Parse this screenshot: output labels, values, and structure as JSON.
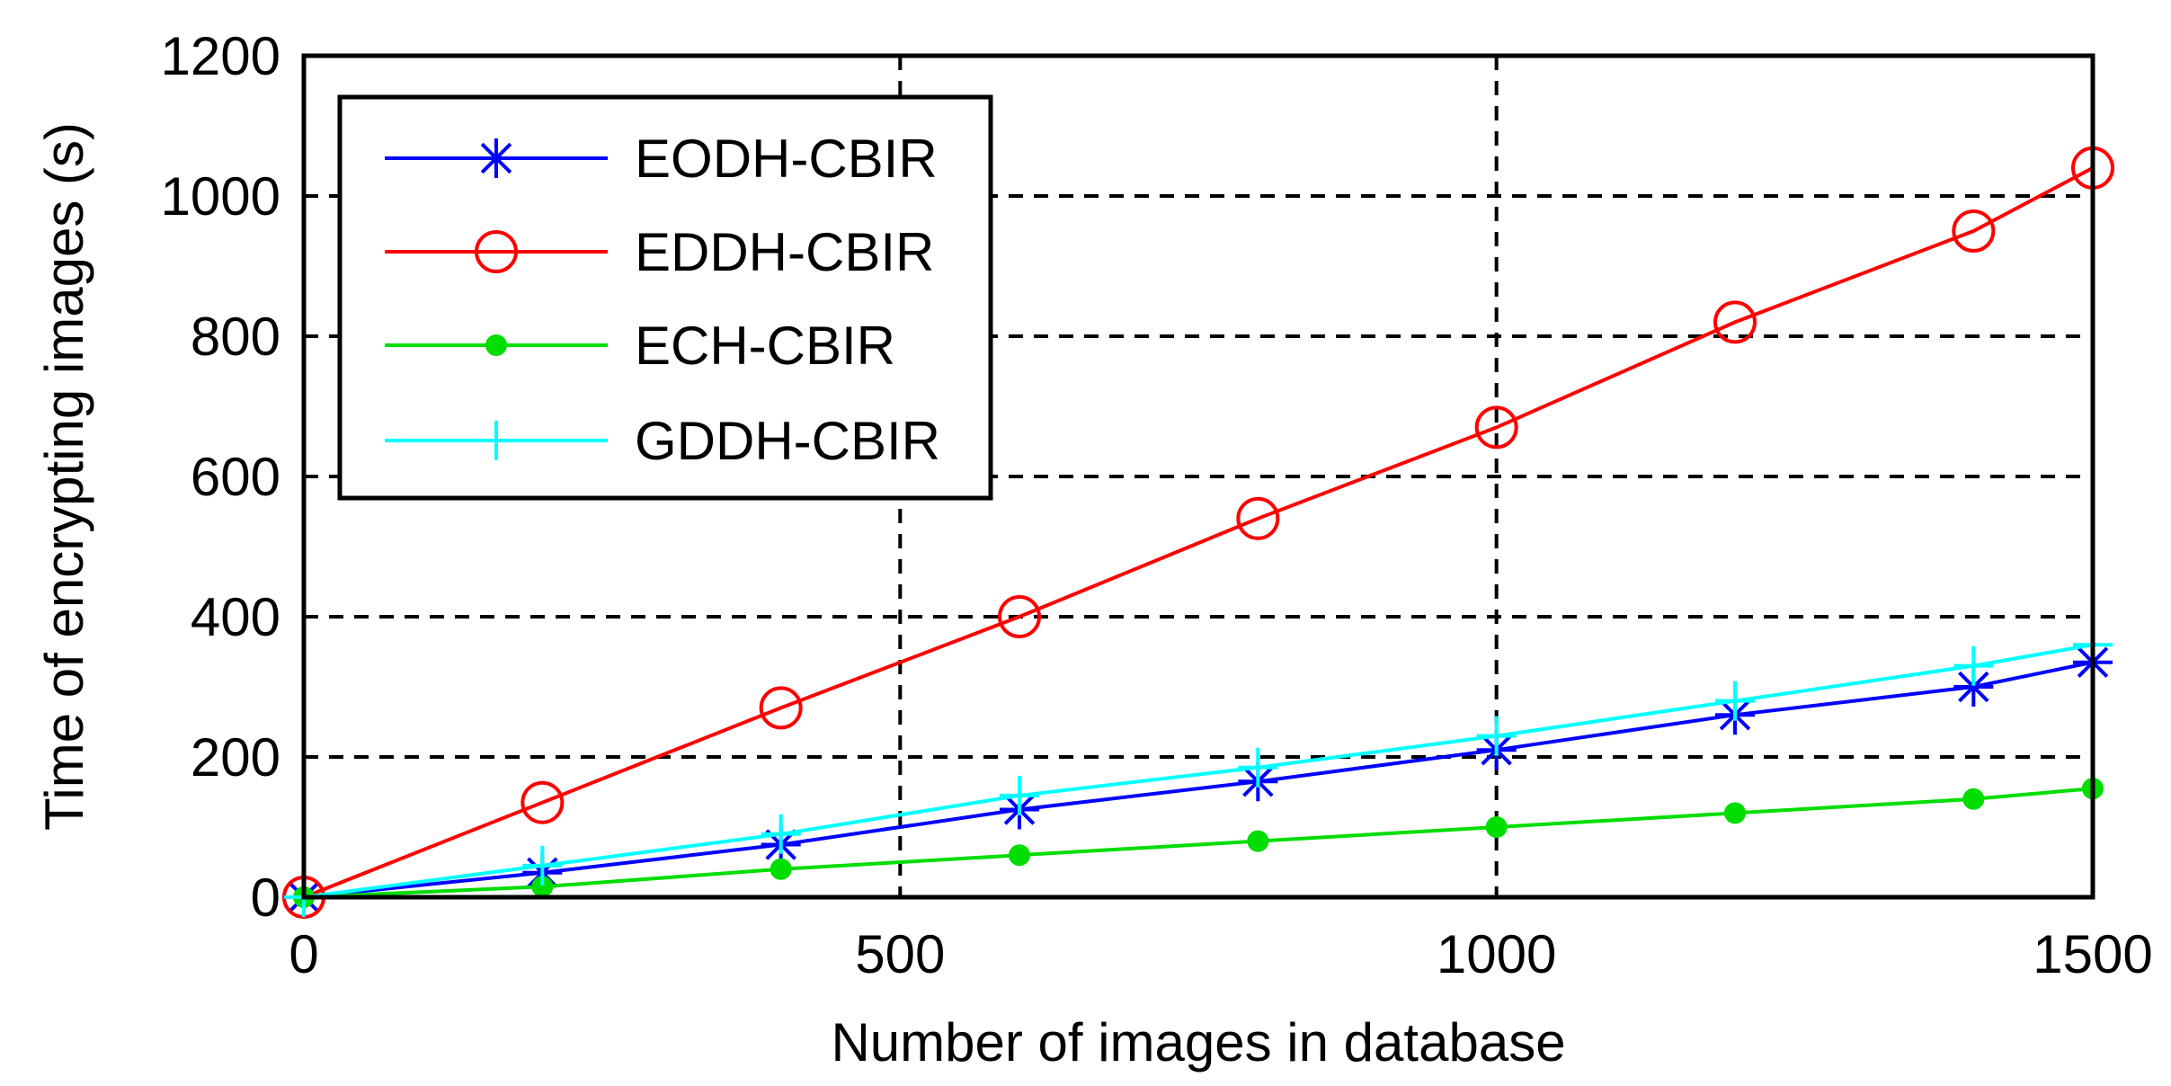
{
  "chart_data": {
    "type": "line",
    "title": "",
    "xlabel": "Number of images in database",
    "ylabel": "Time of encrypting images (s)",
    "xlim": [
      0,
      1500
    ],
    "ylim": [
      0,
      1200
    ],
    "xticks": [
      "0",
      "500",
      "1000",
      "1500"
    ],
    "yticks": [
      "0",
      "200",
      "400",
      "600",
      "800",
      "1000",
      "1200"
    ],
    "grid": true,
    "legend_position": "top-left",
    "x": [
      0,
      200,
      400,
      600,
      800,
      1000,
      1200,
      1400,
      1500
    ],
    "series": [
      {
        "name": "EODH-CBIR",
        "color": "#0000ff",
        "marker": "asterisk",
        "values": [
          0,
          35,
          75,
          125,
          165,
          210,
          260,
          300,
          335
        ]
      },
      {
        "name": "EDDH-CBIR",
        "color": "#ff0000",
        "marker": "circle",
        "values": [
          0,
          135,
          270,
          400,
          540,
          670,
          820,
          950,
          1040
        ]
      },
      {
        "name": "ECH-CBIR",
        "color": "#00dd00",
        "marker": "dot",
        "values": [
          0,
          15,
          40,
          60,
          80,
          100,
          120,
          140,
          155
        ]
      },
      {
        "name": "GDDH-CBIR",
        "color": "#00ffff",
        "marker": "plus",
        "values": [
          0,
          45,
          90,
          145,
          185,
          230,
          280,
          330,
          360
        ]
      }
    ]
  }
}
